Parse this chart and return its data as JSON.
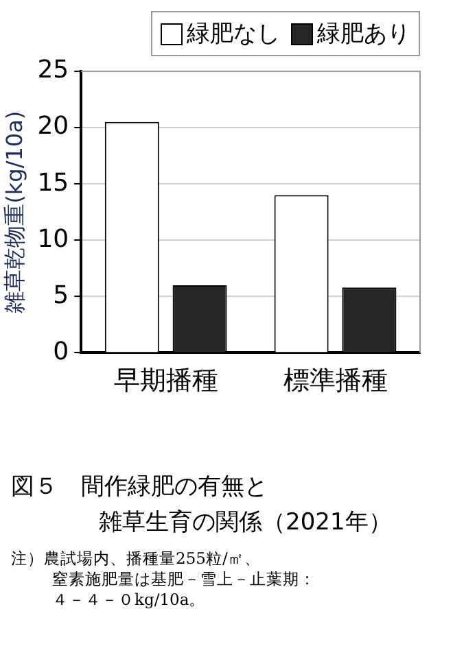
{
  "chart_data": {
    "type": "bar",
    "title": "図５　間作緑肥の有無と",
    "subtitle": "雑草生育の関係（2021年）",
    "ylabel": "雑草乾物重(kg/10a)",
    "categories": [
      "早期播種",
      "標準播種"
    ],
    "series": [
      {
        "name": "緑肥なし",
        "color": "#ffffff",
        "values": [
          20.5,
          14
        ]
      },
      {
        "name": "緑肥あり",
        "color": "#262626",
        "values": [
          6,
          5.8
        ]
      }
    ],
    "ylim": [
      0,
      25
    ],
    "yticks": [
      0,
      5,
      10,
      15,
      20,
      25
    ],
    "grid": "y",
    "legend": "top right",
    "annotations": [
      "注）農試場内、播種量255粒/㎡、",
      "窒素施肥量は基肥－雪上－止葉期：",
      "４－４－０kg/10a。"
    ]
  }
}
